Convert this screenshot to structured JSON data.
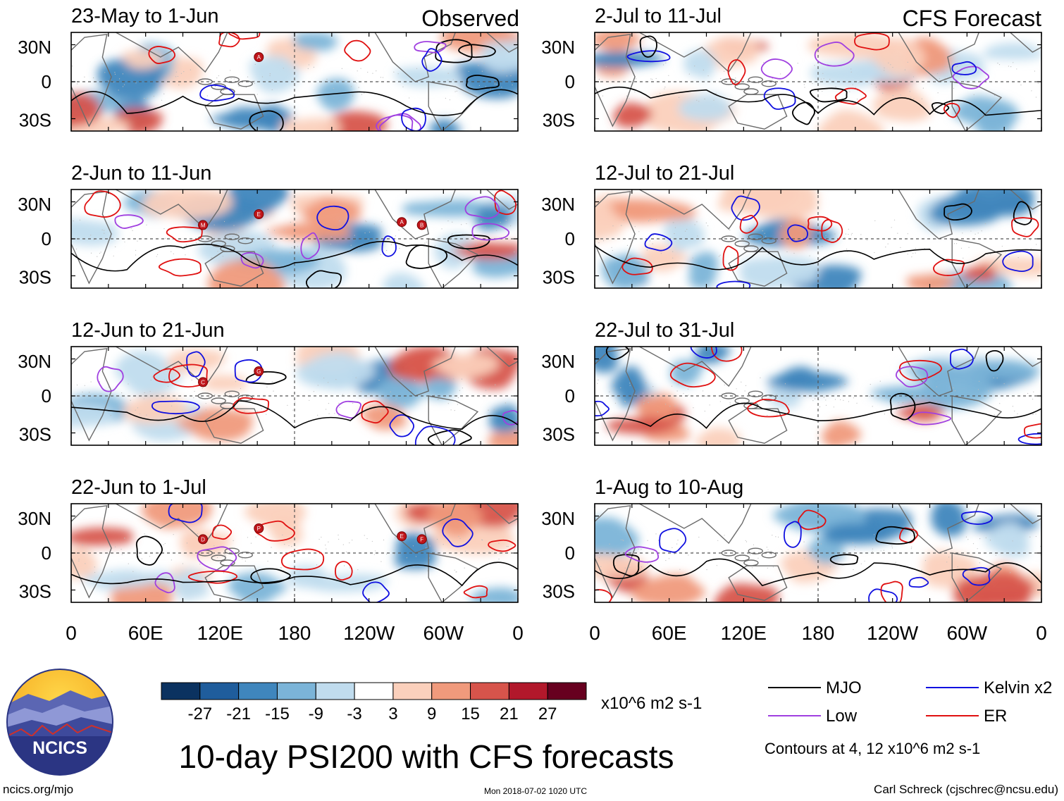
{
  "columns": {
    "observed_label": "Observed",
    "forecast_label": "CFS Forecast"
  },
  "panels": [
    {
      "title": "23-May to 1-Jun",
      "column": "observed",
      "storms": [
        "A"
      ]
    },
    {
      "title": "2-Jun to 11-Jun",
      "column": "observed",
      "storms": [
        "E",
        "M",
        "A",
        "B"
      ]
    },
    {
      "title": "12-Jun to 21-Jun",
      "column": "observed",
      "storms": [
        "G",
        "C"
      ]
    },
    {
      "title": "22-Jun to 1-Jul",
      "column": "observed",
      "storms": [
        "P",
        "D",
        "E",
        "F"
      ]
    },
    {
      "title": "2-Jul to 11-Jul",
      "column": "forecast",
      "storms": []
    },
    {
      "title": "12-Jul to 21-Jul",
      "column": "forecast",
      "storms": []
    },
    {
      "title": "22-Jul to 31-Jul",
      "column": "forecast",
      "storms": []
    },
    {
      "title": "1-Aug to 10-Aug",
      "column": "forecast",
      "storms": []
    }
  ],
  "axes": {
    "lat_labels": [
      "30N",
      "0",
      "30S"
    ],
    "lon_labels": [
      "0",
      "60E",
      "120E",
      "180",
      "120W",
      "60W",
      "0"
    ]
  },
  "colorbar": {
    "ticks": [
      "-27",
      "-21",
      "-15",
      "-9",
      "-3",
      "3",
      "9",
      "15",
      "21",
      "27"
    ],
    "colors": [
      "#0b3260",
      "#1f5d9c",
      "#3f86bd",
      "#7bb4d8",
      "#c0dcee",
      "#ffffff",
      "#fbd0bc",
      "#f09a7c",
      "#d7544b",
      "#b2182b",
      "#67001f"
    ],
    "units": "x10^6 m2 s-1"
  },
  "legend": {
    "items": [
      {
        "label": "MJO",
        "color": "#000000"
      },
      {
        "label": "Kelvin x2",
        "color": "#1010e0"
      },
      {
        "label": "Low",
        "color": "#a040e0"
      },
      {
        "label": "ER",
        "color": "#e01010"
      }
    ],
    "note": "Contours at 4, 12 x10^6 m2 s-1"
  },
  "logo": {
    "text": "NCICS"
  },
  "title": "10-day PSI200 with CFS forecasts",
  "footer": {
    "url": "ncics.org/mjo",
    "timestamp": "Mon 2018-07-02 1020 UTC",
    "credit": "Carl Schreck (cjschrec@ncsu.edu)"
  }
}
